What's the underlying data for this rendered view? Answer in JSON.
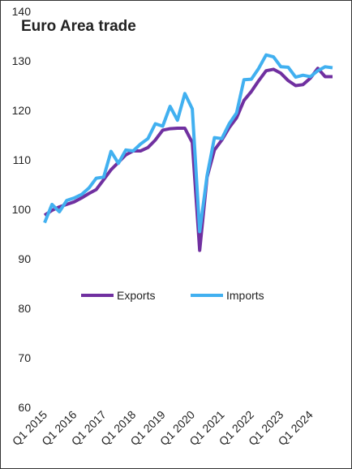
{
  "chart_data": {
    "type": "line",
    "title": "Euro Area trade",
    "categories": [
      "Q1 2015",
      null,
      null,
      null,
      "Q1 2016",
      null,
      null,
      null,
      "Q1 2017",
      null,
      null,
      null,
      "Q1 2018",
      null,
      null,
      null,
      "Q1 2019",
      null,
      null,
      null,
      "Q1 2020",
      null,
      null,
      null,
      "Q1 2021",
      null,
      null,
      null,
      "Q1 2022",
      null,
      null,
      null,
      "Q1 2023",
      null,
      null,
      null,
      "Q1 2024",
      null,
      null,
      null
    ],
    "series": [
      {
        "name": "Exports",
        "color": "#7030a0",
        "values": [
          98.8,
          99.8,
          100.5,
          101.0,
          101.5,
          102.3,
          103.2,
          104.0,
          106.0,
          108.0,
          109.5,
          111.0,
          111.8,
          111.8,
          112.5,
          114.0,
          116.0,
          116.3,
          116.4,
          116.4,
          113.5,
          91.7,
          106.5,
          112.0,
          114.0,
          116.5,
          118.5,
          122.0,
          123.8,
          126.0,
          128.0,
          128.3,
          127.5,
          126.0,
          125.0,
          125.2,
          126.5,
          128.5,
          126.8,
          126.8
        ]
      },
      {
        "name": "Imports",
        "color": "#41b0f0",
        "values": [
          97.3,
          101.0,
          99.5,
          101.8,
          102.3,
          103.0,
          104.3,
          106.3,
          106.5,
          111.7,
          109.3,
          112.0,
          111.8,
          113.2,
          114.3,
          117.3,
          116.8,
          120.8,
          118.0,
          123.4,
          120.3,
          95.5,
          106.8,
          114.5,
          114.3,
          117.3,
          119.5,
          126.2,
          126.3,
          128.5,
          131.2,
          130.8,
          128.8,
          128.7,
          126.7,
          127.1,
          126.8,
          128.0,
          128.8,
          128.6
        ]
      }
    ],
    "ylim": [
      60,
      140
    ],
    "yticks": [
      60,
      70,
      80,
      90,
      100,
      110,
      120,
      130,
      140
    ],
    "grid": false,
    "legend": "center"
  }
}
